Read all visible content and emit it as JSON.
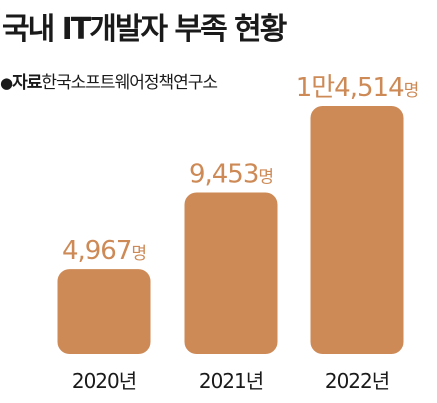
{
  "header": {
    "title": "국내 IT개발자 부족 현황",
    "source_bullet": "●",
    "source_label": "자료",
    "source_name": "한국소프트웨어정책연구소"
  },
  "colors": {
    "bar": "#cd8a56",
    "value_label": "#cd8a56",
    "text": "#1a1a1a"
  },
  "chart_data": {
    "type": "bar",
    "title": "국내 IT개발자 부족 현황",
    "categories": [
      "2020년",
      "2021년",
      "2022년"
    ],
    "values": [
      4967,
      9453,
      14514
    ],
    "value_labels": [
      {
        "main": "4,967",
        "unit": "명"
      },
      {
        "main": "9,453",
        "unit": "명"
      },
      {
        "main": "1만4,514",
        "unit": "명"
      }
    ],
    "xlabel": "",
    "ylabel": "",
    "grid": false,
    "legend": "none"
  }
}
